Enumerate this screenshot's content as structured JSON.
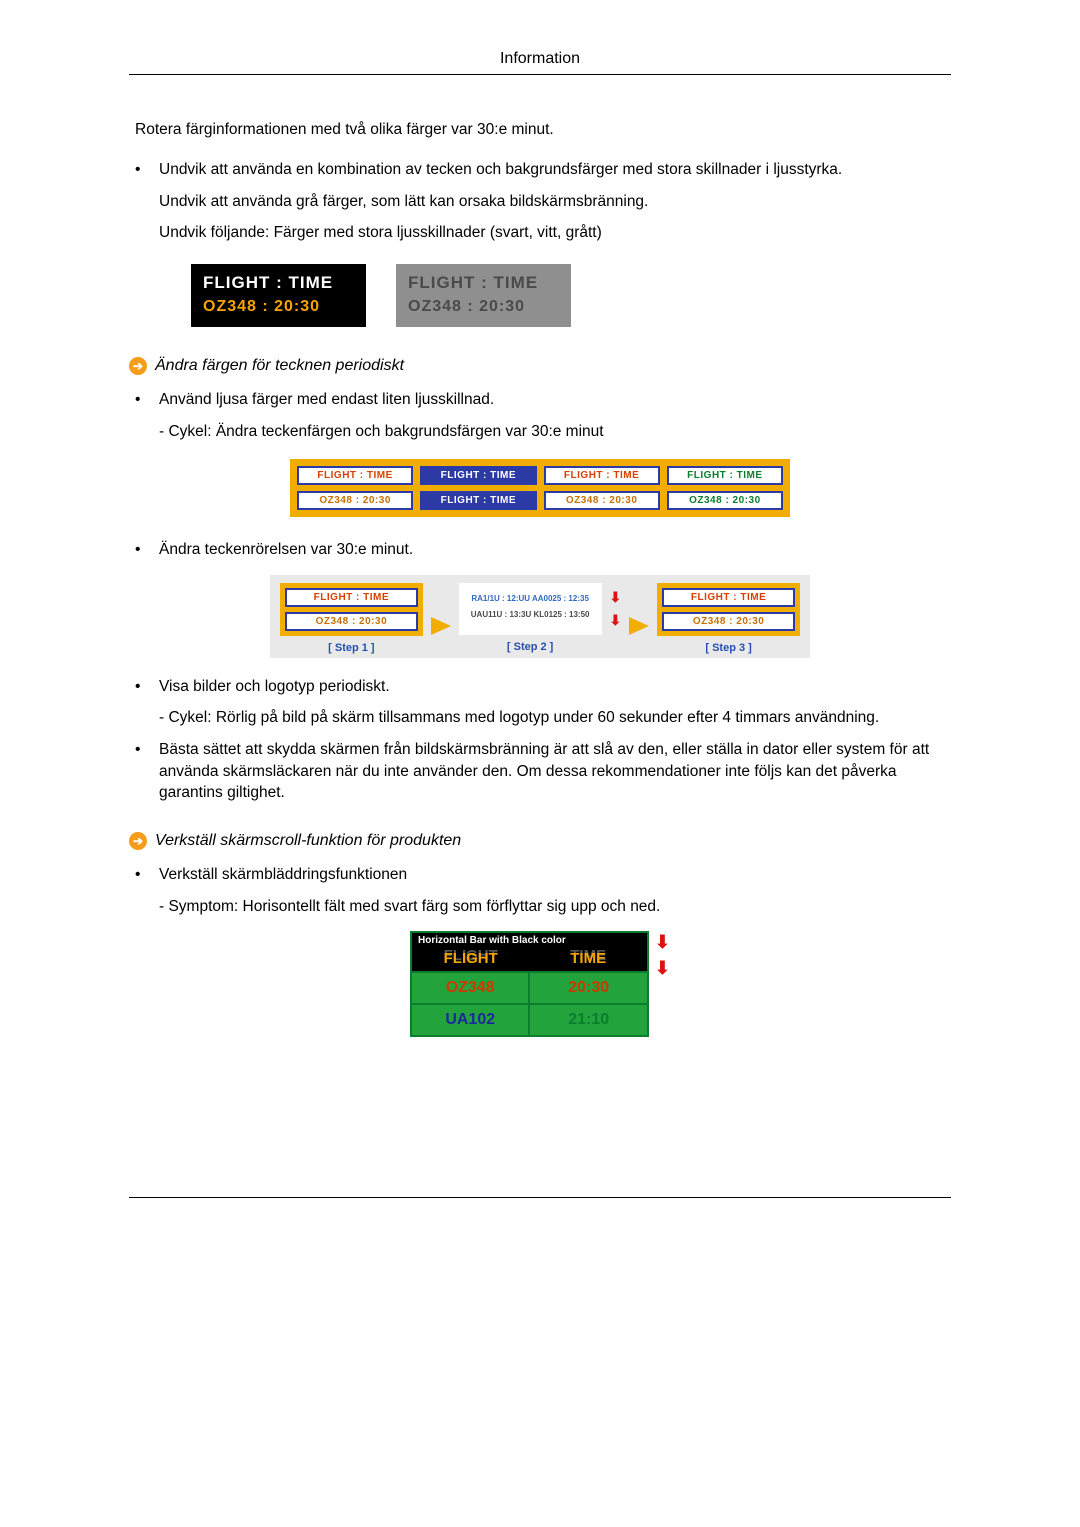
{
  "header": {
    "title": "Information"
  },
  "intro": {
    "rotate": "Rotera färginformationen med två olika färger var 30:e minut.",
    "b1": "Undvik att använda en kombination av tecken och bakgrundsfärger med stora skillnader i ljusstyrka.",
    "b1a": "Undvik att använda grå färger, som lätt kan orsaka bildskärmsbränning.",
    "b1b": "Undvik följande: Färger med stora ljusskillnader (svart, vitt, grått)"
  },
  "fig1": {
    "row1": "FLIGHT  :  TIME",
    "row2": "OZ348    :  20:30",
    "left": {
      "bg": "#000000",
      "l1_color": "#ffffff",
      "l2_color": "#f5a400"
    },
    "right": {
      "bg": "#8f8f8f",
      "l1_color": "#4a4a4a",
      "l2_color": "#4a4a4a"
    }
  },
  "sec1": {
    "title": "Ändra färgen för tecknen periodiskt",
    "b1": "Använd ljusa färger med endast liten ljusskillnad.",
    "b1_sub": "- Cykel: Ändra teckenfärgen och bakgrundsfärgen var 30:e minut",
    "b2": "Ändra teckenrörelsen var 30:e minut.",
    "b3": "Visa bilder och logotyp periodiskt.",
    "b3_sub": "- Cykel: Rörlig på bild på skärm tillsammans med logotyp under 60 sekunder efter 4 timmars användning.",
    "b4": "Bästa sättet att skydda skärmen från bildskärmsbränning är att slå av den, eller ställa in dator eller system för att använda skärmsläckaren när du inte använder den. Om dessa rekommendationer inte följs kan det påverka garantins giltighet."
  },
  "fig2": {
    "hd": "FLIGHT : TIME",
    "dt": "OZ348   : 20:30",
    "strip_bg": "#f2ae00",
    "border": "#2b3aa5"
  },
  "fig3": {
    "step1": "[ Step 1 ]",
    "step2": "[ Step 2 ]",
    "step3": "[ Step 3 ]",
    "pseudo_a": "RA1/1U : 12:UU\nAA0025 : 12:35",
    "pseudo_b": "UAU11U : 13:3U\nKL0125 : 13:50"
  },
  "sec2": {
    "title": "Verkställ skärmscroll-funktion för produkten",
    "b1": "Verkställ skärmbläddringsfunktionen",
    "b1_sub": "- Symptom: Horisontellt fält med svart färg som förflyttar sig upp och ned."
  },
  "fig4": {
    "bar": "Horizontal Bar with Black color",
    "h1": "FLIGHT",
    "h2": "TIME",
    "r1c1": "OZ348",
    "r1c2": "20:30",
    "r2c1": "UA102",
    "r2c2": "21:10",
    "panel_bg": "#23a33b",
    "border": "#0a7d2e"
  },
  "glyphs": {
    "bullet": "•",
    "arrow_right": "➔",
    "arrow_down": "⬇"
  }
}
